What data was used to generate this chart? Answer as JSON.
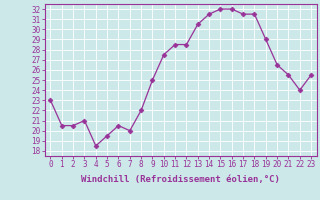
{
  "x": [
    0,
    1,
    2,
    3,
    4,
    5,
    6,
    7,
    8,
    9,
    10,
    11,
    12,
    13,
    14,
    15,
    16,
    17,
    18,
    19,
    20,
    21,
    22,
    23
  ],
  "y": [
    23.0,
    20.5,
    20.5,
    21.0,
    18.5,
    19.5,
    20.5,
    20.0,
    22.0,
    25.0,
    27.5,
    28.5,
    28.5,
    30.5,
    31.5,
    32.0,
    32.0,
    31.5,
    31.5,
    29.0,
    26.5,
    25.5,
    24.0,
    25.5
  ],
  "line_color": "#993399",
  "marker": "D",
  "marker_size": 2.5,
  "bg_color": "#cce8e8",
  "grid_color": "#b0d4d4",
  "xlabel": "Windchill (Refroidissement éolien,°C)",
  "ylim": [
    17.5,
    32.5
  ],
  "xlim_min": -0.5,
  "xlim_max": 23.5,
  "yticks": [
    18,
    19,
    20,
    21,
    22,
    23,
    24,
    25,
    26,
    27,
    28,
    29,
    30,
    31,
    32
  ],
  "xticks": [
    0,
    1,
    2,
    3,
    4,
    5,
    6,
    7,
    8,
    9,
    10,
    11,
    12,
    13,
    14,
    15,
    16,
    17,
    18,
    19,
    20,
    21,
    22,
    23
  ],
  "tick_color": "#993399",
  "label_color": "#993399",
  "axis_color": "#993399",
  "label_fontsize": 6.5,
  "tick_fontsize": 5.5
}
